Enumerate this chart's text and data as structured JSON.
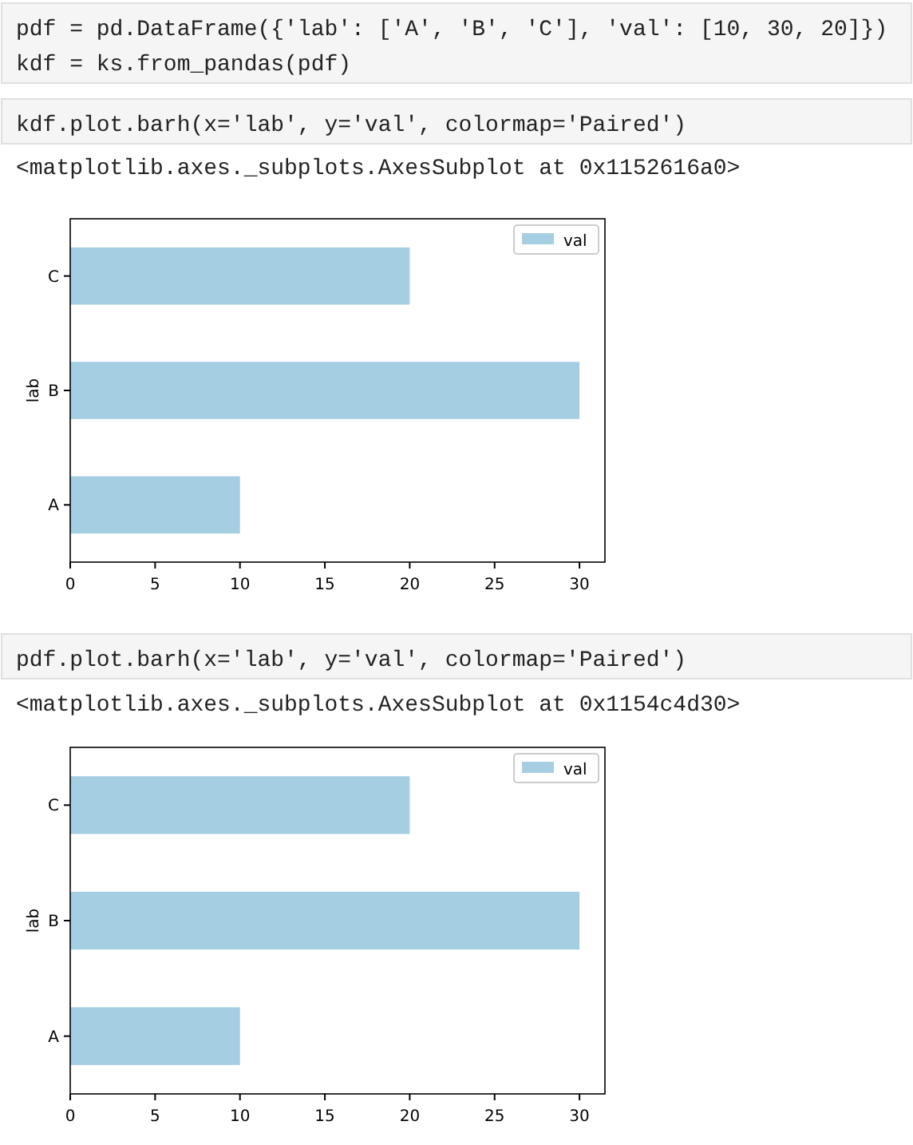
{
  "chart_data": [
    {
      "type": "bar",
      "orientation": "horizontal",
      "categories": [
        "C",
        "B",
        "A"
      ],
      "series": [
        {
          "name": "val",
          "color": "#a6cee3",
          "values": [
            20,
            30,
            10
          ]
        }
      ],
      "xlim": [
        0,
        31.5
      ],
      "xticks": [
        0,
        5,
        10,
        15,
        20,
        25,
        30
      ],
      "ylabel": "lab",
      "legend": "top right",
      "grid": false,
      "annotations": [
        "pdf = pd.DataFrame({'lab': ['A', 'B', 'C'], 'val': [10, 30, 20]})",
        "kdf = ks.from_pandas(pdf)",
        "kdf.plot.barh(x='lab', y='val', colormap='Paired')",
        "<matplotlib.axes._subplots.AxesSubplot at 0x1152616a0>"
      ]
    },
    {
      "type": "bar",
      "orientation": "horizontal",
      "categories": [
        "C",
        "B",
        "A"
      ],
      "series": [
        {
          "name": "val",
          "color": "#a6cee3",
          "values": [
            20,
            30,
            10
          ]
        }
      ],
      "xlim": [
        0,
        31.5
      ],
      "xticks": [
        0,
        5,
        10,
        15,
        20,
        25,
        30
      ],
      "ylabel": "lab",
      "legend": "top right",
      "grid": false,
      "annotations": [
        "pdf.plot.barh(x='lab', y='val', colormap='Paired')",
        "<matplotlib.axes._subplots.AxesSubplot at 0x1154c4d30>"
      ]
    }
  ]
}
